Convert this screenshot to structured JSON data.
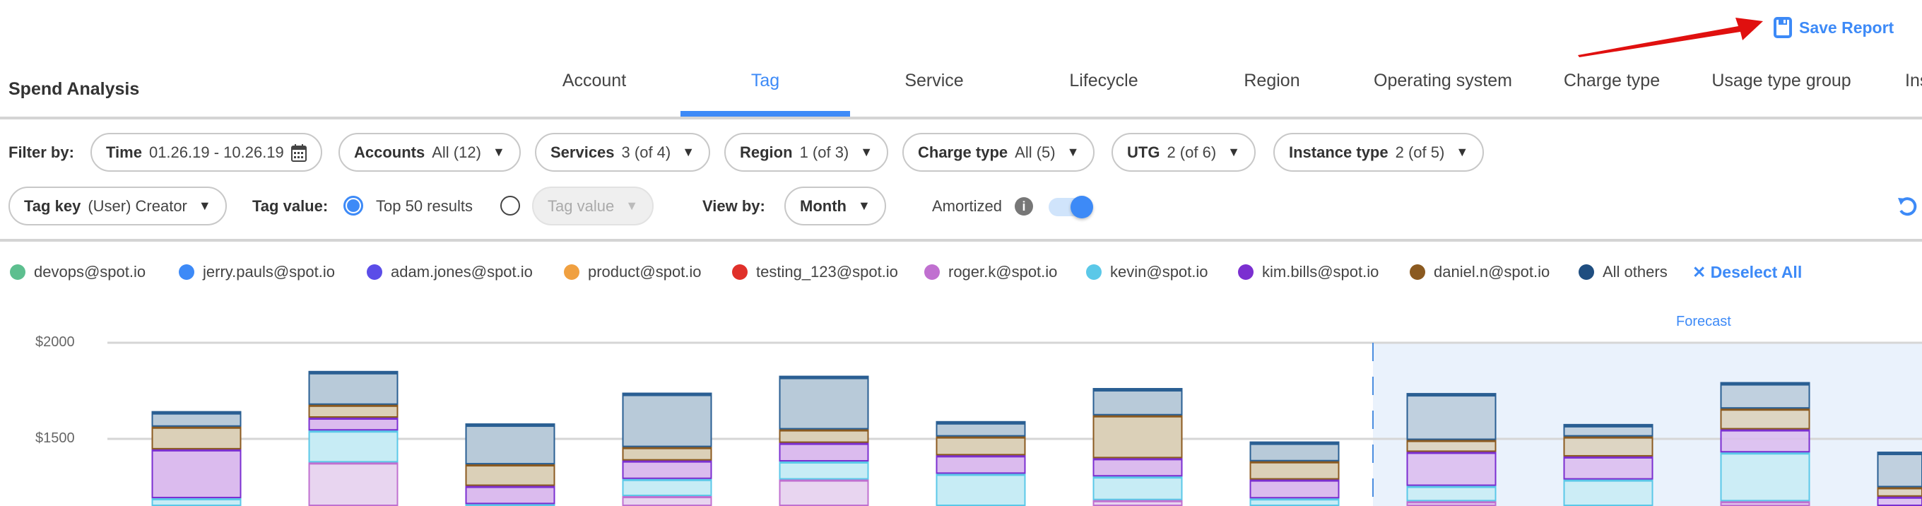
{
  "header": {
    "title": "Spend Analysis",
    "save_report": "Save Report",
    "save_icon": "floppy-disk-icon"
  },
  "tabs": [
    {
      "label": "Account",
      "active": false
    },
    {
      "label": "Tag",
      "active": true
    },
    {
      "label": "Service",
      "active": false
    },
    {
      "label": "Lifecycle",
      "active": false
    },
    {
      "label": "Region",
      "active": false
    },
    {
      "label": "Operating system",
      "active": false
    },
    {
      "label": "Charge type",
      "active": false
    },
    {
      "label": "Usage type group",
      "active": false
    },
    {
      "label": "Inst",
      "active": false
    }
  ],
  "filters": {
    "label": "Filter by:",
    "time": {
      "label": "Time",
      "value": "01.26.19 - 10.26.19"
    },
    "accounts": {
      "label": "Accounts",
      "value": "All (12)"
    },
    "services": {
      "label": "Services",
      "value": "3 (of 4)"
    },
    "region": {
      "label": "Region",
      "value": "1 (of 3)"
    },
    "charge_type": {
      "label": "Charge type",
      "value": "All (5)"
    },
    "utg": {
      "label": "UTG",
      "value": "2 (of 6)"
    },
    "instance_type": {
      "label": "Instance type",
      "value": "2 (of 5)"
    }
  },
  "options": {
    "tag_key": {
      "label": "Tag key",
      "value": "(User) Creator"
    },
    "tag_value_label": "Tag value:",
    "top_results": "Top 50 results",
    "tag_value_placeholder": "Tag value",
    "view_by_label": "View by:",
    "view_by": "Month",
    "amortized_label": "Amortized",
    "amortized": true
  },
  "legend": {
    "items": [
      {
        "label": "devops@spot.io",
        "color": "#5dbf8f"
      },
      {
        "label": "jerry.pauls@spot.io",
        "color": "#3d8af7"
      },
      {
        "label": "adam.jones@spot.io",
        "color": "#5b4de8"
      },
      {
        "label": "product@spot.io",
        "color": "#f0a040"
      },
      {
        "label": "testing_123@spot.io",
        "color": "#e0302a"
      },
      {
        "label": "roger.k@spot.io",
        "color": "#c070d0"
      },
      {
        "label": "kevin@spot.io",
        "color": "#5bc8e8"
      },
      {
        "label": "kim.bills@spot.io",
        "color": "#7b2fd0"
      },
      {
        "label": "daniel.n@spot.io",
        "color": "#8b5a20"
      },
      {
        "label": "All others",
        "color": "#1f4e80"
      }
    ],
    "deselect_all": "Deselect All"
  },
  "chart_data": {
    "type": "bar",
    "stacked": true,
    "y_ticks": [
      "$2000",
      "$1500"
    ],
    "y_tick_values": [
      2000,
      1500
    ],
    "grid": true,
    "forecast_label": "Forecast",
    "forecast_start_index": 8,
    "series_note_stack_order": [
      "roger.k@spot.io",
      "kevin@spot.io",
      "kim.bills@spot.io",
      "daniel.n@spot.io",
      "All others"
    ],
    "series": [
      {
        "name": "roger.k@spot.io",
        "fill": "#e8d5f0",
        "stroke": "#c070d0",
        "stack_tops": [
          null,
          1381,
          null,
          1206,
          1292,
          null,
          1185,
          null,
          1179,
          null,
          1179,
          null
        ]
      },
      {
        "name": "kevin@spot.io",
        "fill": "#c7ecf5",
        "stroke": "#5bc8e8",
        "stack_tops": [
          1195,
          1547,
          1164,
          1295,
          1386,
          1322,
          1308,
          1194,
          1259,
          1292,
          1433,
          null
        ]
      },
      {
        "name": "kim.bills@spot.io",
        "fill": "#dbbbee",
        "stroke": "#7b2fd0",
        "stack_tops": [
          1449,
          1614,
          1259,
          1391,
          1483,
          1418,
          1403,
          1292,
          1436,
          1412,
          1553,
          1203
        ]
      },
      {
        "name": "daniel.n@spot.io",
        "fill": "#dbd0b8",
        "stroke": "#8b5a20",
        "stack_tops": [
          1567,
          1681,
          1371,
          1461,
          1553,
          1516,
          1626,
          1387,
          1498,
          1516,
          1661,
          1252
        ]
      },
      {
        "name": "All others",
        "fill": "#b8cad9",
        "stroke": "#2a5f93",
        "stack_tops": [
          1641,
          1850,
          1577,
          1737,
          1825,
          1589,
          1761,
          1483,
          1735,
          1574,
          1792,
          1430
        ]
      }
    ]
  }
}
